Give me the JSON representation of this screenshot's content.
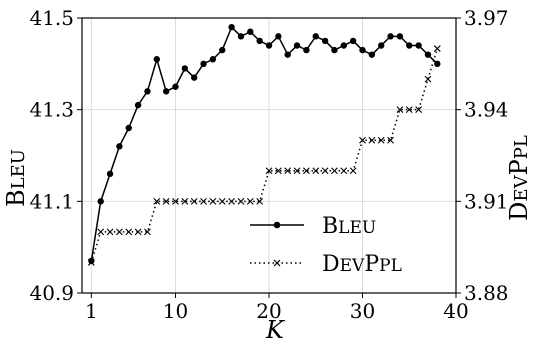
{
  "chart_data": {
    "type": "line",
    "xlabel": "K",
    "ylabel_left": {
      "main": "B",
      "small": "LEU"
    },
    "ylabel_right": {
      "part1_main": "D",
      "part1_small": "EV",
      "part2_main": "P",
      "part2_small": "PL"
    },
    "x_ticks": [
      "1",
      "10",
      "20",
      "30",
      "40"
    ],
    "x_tick_values": [
      1,
      10,
      20,
      30,
      40
    ],
    "xlim": [
      0,
      40
    ],
    "ylim_left": [
      40.9,
      41.5
    ],
    "y_left_ticks": [
      "40.9",
      "41.1",
      "41.3",
      "41.5"
    ],
    "y_left_tick_values": [
      40.9,
      41.1,
      41.3,
      41.5
    ],
    "ylim_right": [
      3.88,
      3.97
    ],
    "y_right_ticks": [
      "3.88",
      "3.91",
      "3.94",
      "3.97"
    ],
    "y_right_tick_values": [
      3.88,
      3.91,
      3.94,
      3.97
    ],
    "grid": true,
    "legend_position": "lower-right",
    "series": [
      {
        "name": "BLEU",
        "legend": {
          "main": "B",
          "small": "LEU"
        },
        "axis": "left",
        "style": "solid",
        "marker": "circle",
        "color": "#000000",
        "x": [
          1,
          2,
          3,
          4,
          5,
          6,
          7,
          8,
          9,
          10,
          11,
          12,
          13,
          14,
          15,
          16,
          17,
          18,
          19,
          20,
          21,
          22,
          23,
          24,
          25,
          26,
          27,
          28,
          29,
          30,
          31,
          32,
          33,
          34,
          35,
          36,
          37,
          38
        ],
        "values": [
          40.97,
          41.1,
          41.16,
          41.22,
          41.26,
          41.31,
          41.34,
          41.41,
          41.34,
          41.35,
          41.39,
          41.37,
          41.4,
          41.41,
          41.43,
          41.48,
          41.46,
          41.47,
          41.45,
          41.44,
          41.46,
          41.42,
          41.44,
          41.43,
          41.46,
          41.45,
          41.43,
          41.44,
          41.45,
          41.43,
          41.42,
          41.44,
          41.46,
          41.46,
          41.44,
          41.44,
          41.42,
          41.4
        ]
      },
      {
        "name": "DevPpl",
        "legend": {
          "part1_main": "D",
          "part1_small": "EV",
          "part2_main": "P",
          "part2_small": "PL"
        },
        "axis": "right",
        "style": "dotted",
        "marker": "x",
        "color": "#000000",
        "x": [
          1,
          2,
          3,
          4,
          5,
          6,
          7,
          8,
          9,
          10,
          11,
          12,
          13,
          14,
          15,
          16,
          17,
          18,
          19,
          20,
          21,
          22,
          23,
          24,
          25,
          26,
          27,
          28,
          29,
          30,
          31,
          32,
          33,
          34,
          35,
          36,
          37,
          38
        ],
        "values": [
          3.89,
          3.9,
          3.9,
          3.9,
          3.9,
          3.9,
          3.9,
          3.91,
          3.91,
          3.91,
          3.91,
          3.91,
          3.91,
          3.91,
          3.91,
          3.91,
          3.91,
          3.91,
          3.91,
          3.92,
          3.92,
          3.92,
          3.92,
          3.92,
          3.92,
          3.92,
          3.92,
          3.92,
          3.92,
          3.93,
          3.93,
          3.93,
          3.93,
          3.94,
          3.94,
          3.94,
          3.95,
          3.96
        ]
      }
    ]
  }
}
